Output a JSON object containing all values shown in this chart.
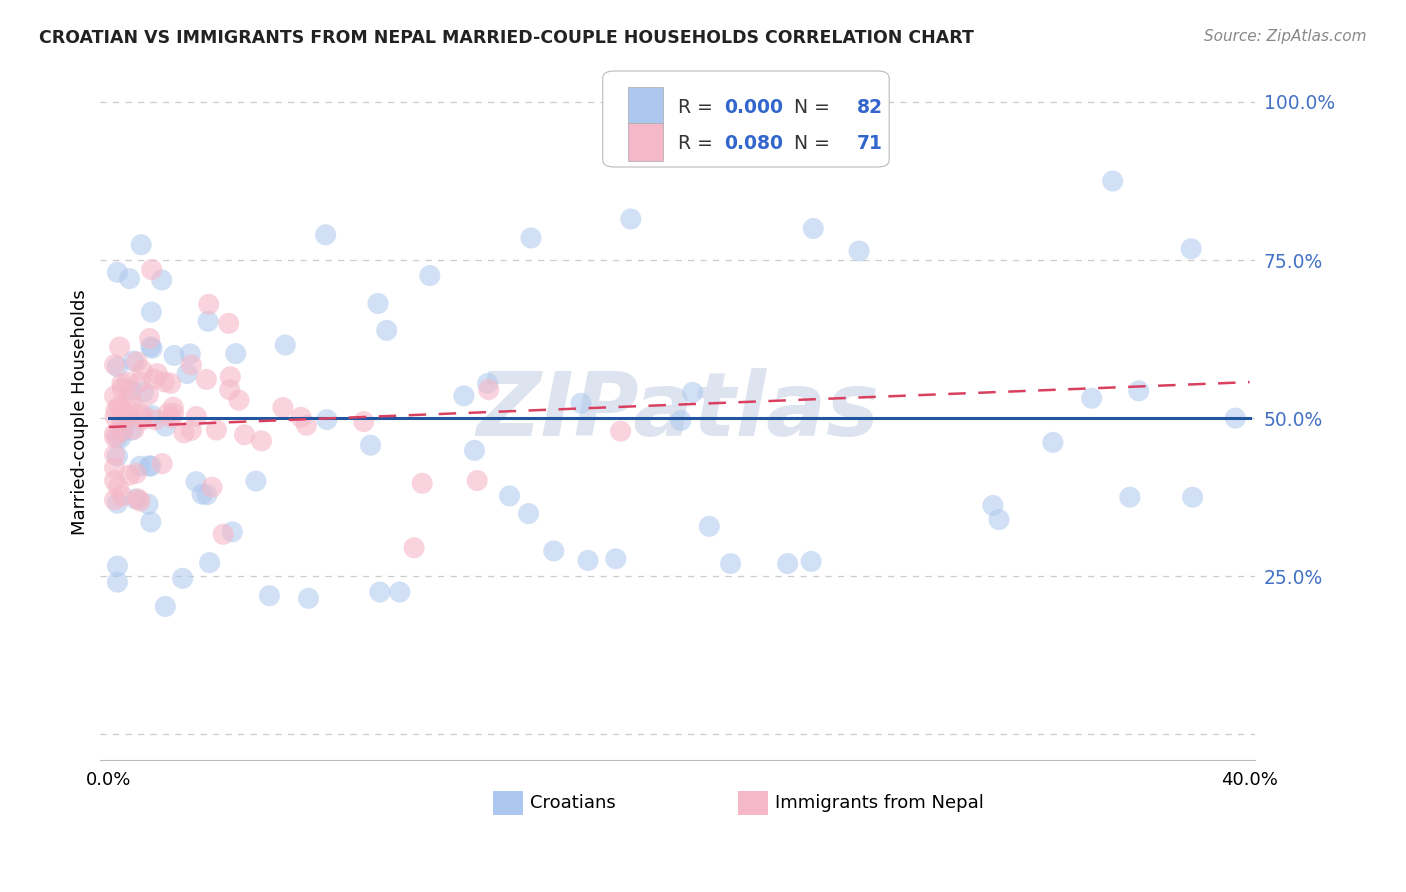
{
  "title": "CROATIAN VS IMMIGRANTS FROM NEPAL MARRIED-COUPLE HOUSEHOLDS CORRELATION CHART",
  "source": "Source: ZipAtlas.com",
  "ylabel": "Married-couple Households",
  "legend_blue_r": "R = ",
  "legend_blue_r_val": "0.000",
  "legend_blue_n": "N = ",
  "legend_blue_n_val": "82",
  "legend_pink_r": "R = ",
  "legend_pink_r_val": "0.080",
  "legend_pink_n": "N = ",
  "legend_pink_n_val": "71",
  "legend_label_blue": "Croatians",
  "legend_label_pink": "Immigrants from Nepal",
  "blue_color": "#adc8ee",
  "pink_color": "#f5b8c8",
  "blue_line_color": "#2255a0",
  "pink_line_color": "#d94060",
  "r_n_dark_color": "#333333",
  "r_n_blue_color": "#3366cc",
  "background_color": "#ffffff",
  "grid_color": "#cccccc",
  "watermark": "ZIPatlas",
  "watermark_color": "#dde4ef",
  "title_color": "#222222",
  "source_color": "#888888",
  "ytick_color": "#4472c4",
  "ytick_vals": [
    0.0,
    0.25,
    0.5,
    0.75,
    1.0
  ],
  "ytick_labels": [
    "",
    "25.0%",
    "50.0%",
    "75.0%",
    "100.0%"
  ],
  "xlim": [
    -0.003,
    0.402
  ],
  "ylim": [
    -0.04,
    1.06
  ],
  "blue_line_x": [
    0.0,
    0.4
  ],
  "blue_line_y": [
    0.5,
    0.5
  ],
  "pink_line_x": [
    0.0,
    0.4
  ],
  "pink_line_y": [
    0.486,
    0.557
  ],
  "n_blue": 82,
  "n_pink": 71,
  "blue_seed": 77,
  "pink_seed": 88
}
